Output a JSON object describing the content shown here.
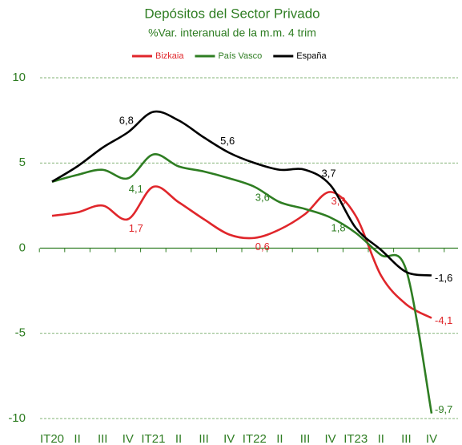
{
  "chart_data": {
    "type": "line",
    "title": "Depósitos del Sector Privado",
    "subtitle": "%Var. interanual de la m.m. 4 trim",
    "categories": [
      "IT20",
      "II",
      "III",
      "IV",
      "IT21",
      "II",
      "III",
      "IV",
      "IT22",
      "II",
      "III",
      "IV",
      "IT23",
      "II",
      "III",
      "IV"
    ],
    "series": [
      {
        "name": "Bizkaia",
        "color": "#e0262b",
        "values": [
          1.9,
          2.1,
          2.5,
          1.7,
          3.6,
          2.7,
          1.7,
          0.8,
          0.6,
          1.1,
          2.0,
          3.3,
          1.9,
          -1.6,
          -3.3,
          -4.1
        ],
        "value_labels": [
          null,
          null,
          null,
          "1,7",
          null,
          null,
          null,
          null,
          "0,6",
          null,
          null,
          "3,3",
          null,
          null,
          null,
          "-4,1"
        ]
      },
      {
        "name": "País Vasco",
        "color": "#2e7d22",
        "values": [
          3.9,
          4.3,
          4.6,
          4.1,
          5.5,
          4.8,
          4.5,
          4.1,
          3.6,
          2.7,
          2.3,
          1.8,
          0.9,
          -0.4,
          -1.3,
          -9.7
        ],
        "value_labels": [
          null,
          null,
          null,
          "4,1",
          null,
          null,
          null,
          null,
          "3,6",
          null,
          null,
          "1,8",
          null,
          null,
          null,
          "-9,7"
        ]
      },
      {
        "name": "España",
        "color": "#000000",
        "values": [
          3.9,
          4.8,
          5.9,
          6.8,
          8.0,
          7.5,
          6.5,
          5.6,
          5.0,
          4.6,
          4.6,
          3.7,
          1.2,
          -0.1,
          -1.4,
          -1.6
        ],
        "value_labels": [
          null,
          null,
          null,
          "6,8",
          null,
          null,
          null,
          "5,6",
          null,
          null,
          null,
          "3,7",
          null,
          null,
          null,
          "-1,6"
        ]
      }
    ],
    "ylim": [
      -10,
      10
    ],
    "yticks": [
      -10,
      -5,
      0,
      5,
      10
    ],
    "grid": true,
    "legend": "top"
  }
}
